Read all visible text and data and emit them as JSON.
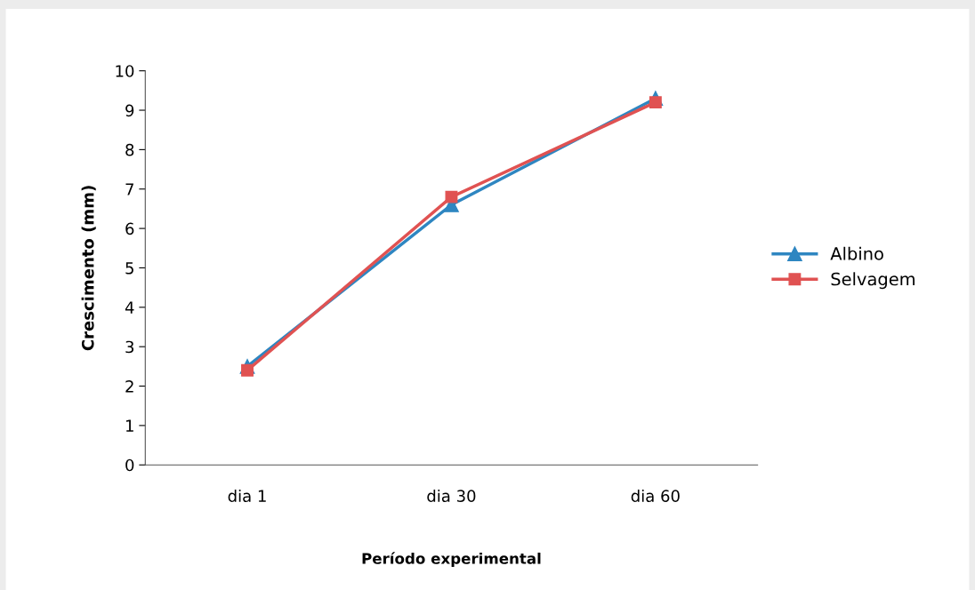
{
  "chart_data": {
    "type": "line",
    "xlabel": "Período experimental",
    "ylabel": "Crescimento (mm)",
    "categories": [
      "dia 1",
      "dia 30",
      "dia 60"
    ],
    "series": [
      {
        "name": "Albino",
        "color": "#2e86c1",
        "values": [
          2.5,
          6.6,
          9.3
        ],
        "marker": "triangle"
      },
      {
        "name": "Selvagem",
        "color": "#e05252",
        "values": [
          2.4,
          6.8,
          9.2
        ],
        "marker": "square"
      }
    ],
    "ylim": [
      0,
      10
    ],
    "yticks": [
      0,
      1,
      2,
      3,
      4,
      5,
      6,
      7,
      8,
      9,
      10
    ],
    "grid": false,
    "legend": "right",
    "line_style": "solid"
  }
}
